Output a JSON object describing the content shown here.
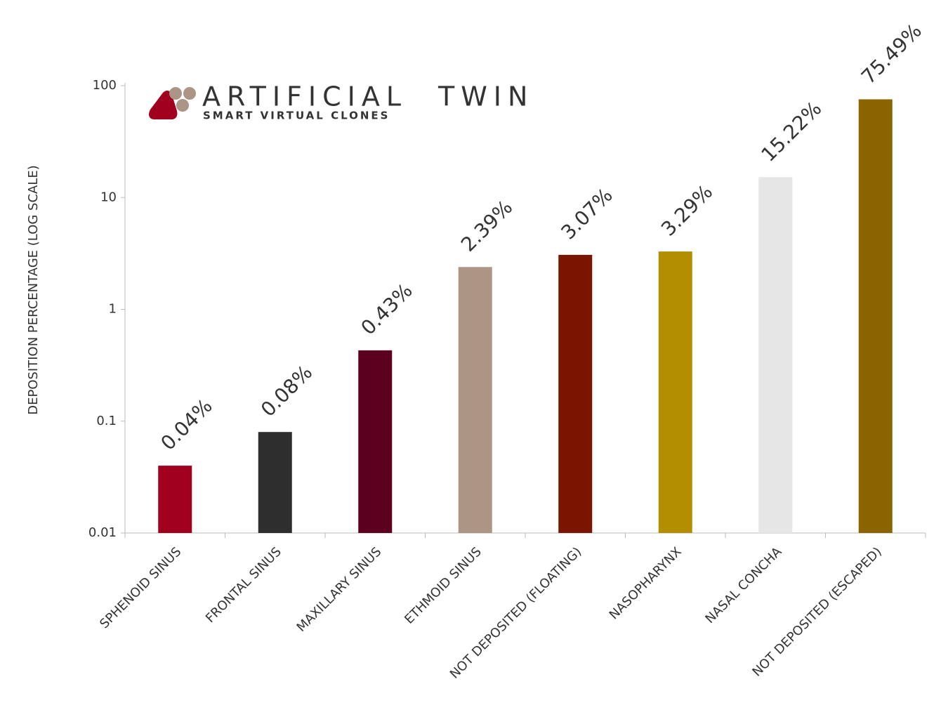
{
  "chart_data": {
    "type": "bar",
    "logo": {
      "name": [
        "ARTIFICIAL",
        "TWIN"
      ],
      "tagline": "SMART VIRTUAL CLONES"
    },
    "y_label": "DEPOSITION PERCENTAGE (LOG SCALE)",
    "categories": [
      "SPHENOID SINUS",
      "FRONTAL SINUS",
      "MAXILLARY SINUS",
      "ETHMOID SINUS",
      "NOT DEPOSITED (FLOATING)",
      "NASOPHARYNX",
      "NASAL CONCHA",
      "NOT DEPOSITED (ESCAPED)"
    ],
    "values": [
      0.04,
      0.08,
      0.43,
      2.39,
      3.07,
      3.29,
      15.22,
      75.49
    ],
    "value_labels": [
      "0.04%",
      "0.08%",
      "0.43%",
      "2.39%",
      "3.07%",
      "3.29%",
      "15.22%",
      "75.49%"
    ],
    "colors": [
      "#a0001e",
      "#2e2e2e",
      "#5c0020",
      "#ad9585",
      "#7a1500",
      "#b38f00",
      "#e6e6e6",
      "#8a6400"
    ],
    "log_scale": true,
    "ylim": [
      0.01,
      100
    ],
    "yticks": [
      0.01,
      0.1,
      1,
      10,
      100
    ],
    "grid": false
  }
}
